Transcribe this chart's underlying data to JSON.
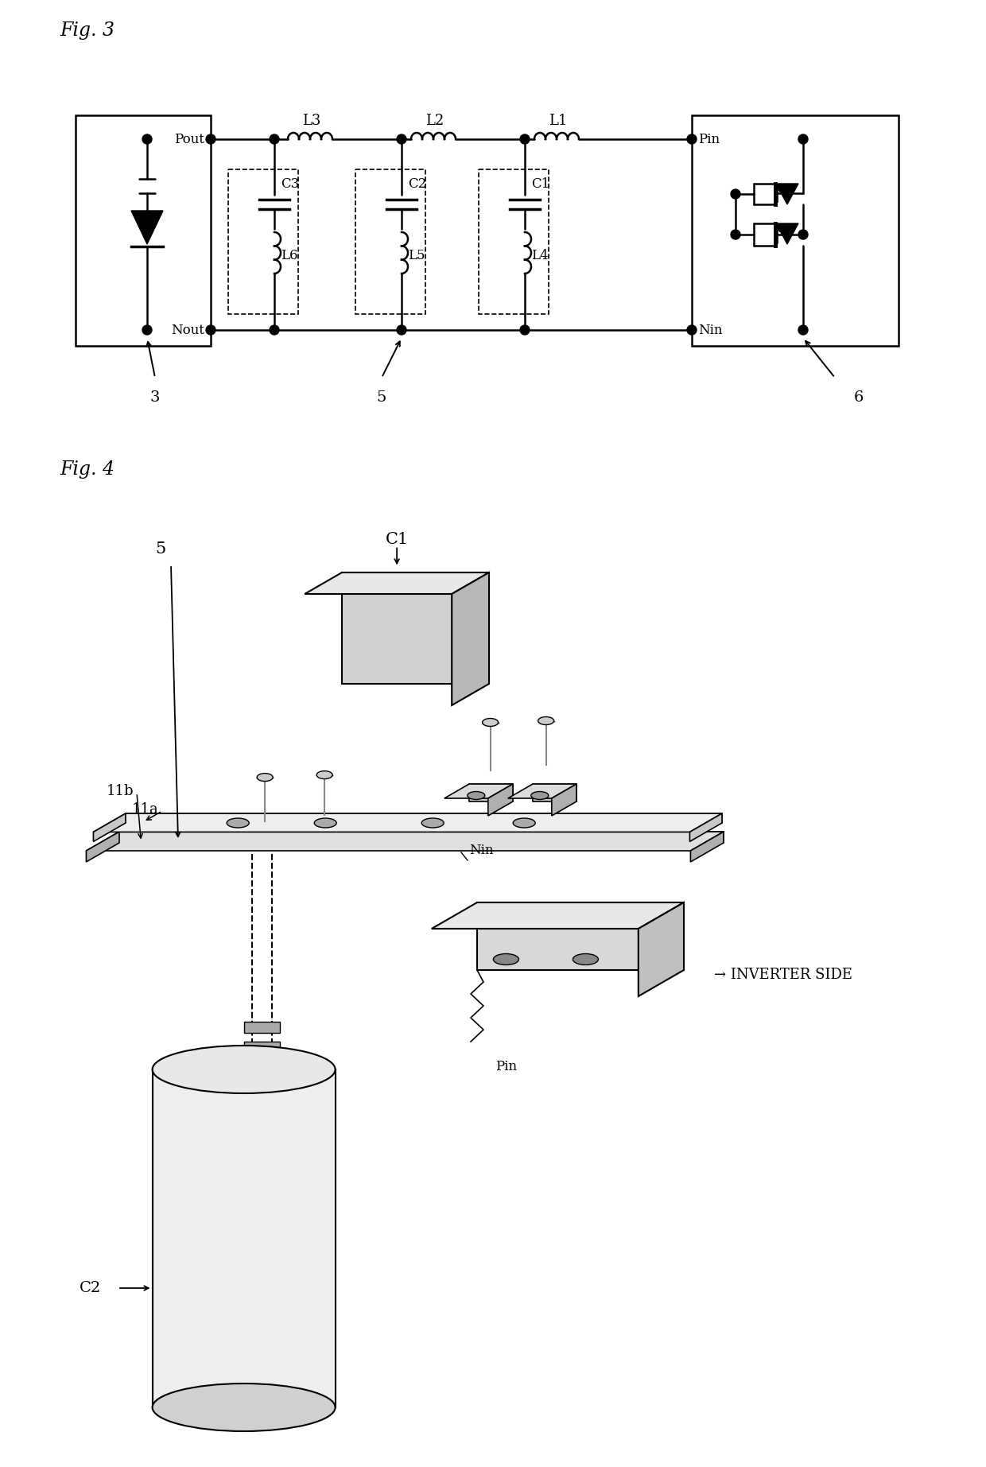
{
  "fig3_title": "Fig. 3",
  "fig4_title": "Fig. 4",
  "background_color": "#ffffff",
  "line_color": "#000000",
  "text_color": "#000000",
  "labels": {
    "Pout": "Pout",
    "Nout": "Nout",
    "Pin": "Pin",
    "Nin": "Nin",
    "L1": "L1",
    "L2": "L2",
    "L3": "L3",
    "L4": "L4",
    "L5": "L5",
    "L6": "L6",
    "C1": "C1",
    "C2": "C2",
    "C3": "C3",
    "ref3": "3",
    "ref5": "5",
    "ref6": "6",
    "fig4_5": "5",
    "fig4_C1": "C1",
    "fig4_C2": "C2",
    "fig4_11a": "11a",
    "fig4_11b": "11b",
    "fig4_Nin": "Nin",
    "fig4_Pin": "Pin",
    "inverter": "→ INVERTER SIDE"
  }
}
